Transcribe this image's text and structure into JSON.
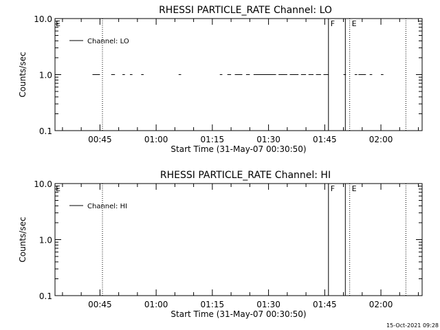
{
  "footer": {
    "timestamp": "15-Oct-2021 09:28"
  },
  "chart_data": [
    {
      "type": "scatter",
      "title": "RHESSI PARTICLE_RATE Channel: LO",
      "xlabel": "Start Time (31-May-07 00:30:50)",
      "ylabel": "Counts/sec",
      "yscale": "log",
      "ylim": [
        0.1,
        10.0
      ],
      "xlim": [
        "00:33:00",
        "02:11:00"
      ],
      "xticks": [
        "00:45",
        "01:00",
        "01:15",
        "01:30",
        "01:45",
        "02:00"
      ],
      "yticks": [
        "0.1",
        "1.0",
        "10.0"
      ],
      "grid": false,
      "legend": {
        "position": "top-left",
        "entries": [
          "Channel: LO"
        ]
      },
      "series": [
        {
          "name": "Channel: LO",
          "segments": [
            {
              "start": "00:43:00",
              "end": "00:45:00",
              "y": 1.0
            },
            {
              "start": "00:48:00",
              "end": "00:49:00",
              "y": 1.0
            },
            {
              "start": "00:51:00",
              "end": "00:51:40",
              "y": 1.0
            },
            {
              "start": "00:53:00",
              "end": "00:53:40",
              "y": 1.0
            },
            {
              "start": "00:56:00",
              "end": "00:56:40",
              "y": 1.0
            },
            {
              "start": "01:06:00",
              "end": "01:06:40",
              "y": 1.0
            },
            {
              "start": "01:17:00",
              "end": "01:17:40",
              "y": 1.0
            },
            {
              "start": "01:19:00",
              "end": "01:20:00",
              "y": 1.0
            },
            {
              "start": "01:21:00",
              "end": "01:23:00",
              "y": 1.0
            },
            {
              "start": "01:24:00",
              "end": "01:25:00",
              "y": 1.0
            },
            {
              "start": "01:26:00",
              "end": "01:32:00",
              "y": 1.0
            },
            {
              "start": "01:32:40",
              "end": "01:35:00",
              "y": 1.0
            },
            {
              "start": "01:35:40",
              "end": "01:38:00",
              "y": 1.0
            },
            {
              "start": "01:38:40",
              "end": "01:40:00",
              "y": 1.0
            },
            {
              "start": "01:40:40",
              "end": "01:42:00",
              "y": 1.0
            },
            {
              "start": "01:42:40",
              "end": "01:44:00",
              "y": 1.0
            },
            {
              "start": "01:44:40",
              "end": "01:46:00",
              "y": 1.0
            },
            {
              "start": "01:50:00",
              "end": "01:50:40",
              "y": 1.0
            },
            {
              "start": "01:53:00",
              "end": "01:53:40",
              "y": 1.0
            },
            {
              "start": "01:54:00",
              "end": "01:56:00",
              "y": 1.0
            },
            {
              "start": "01:57:00",
              "end": "01:57:40",
              "y": 1.0
            },
            {
              "start": "02:00:00",
              "end": "02:00:40",
              "y": 1.0
            }
          ]
        }
      ],
      "markers": [
        {
          "time": "00:33:00",
          "label": "E",
          "style": "none"
        },
        {
          "time": "00:45:40",
          "label": "",
          "style": "dotted"
        },
        {
          "time": "01:46:00",
          "label": "F",
          "style": "solid"
        },
        {
          "time": "01:50:30",
          "label": "",
          "style": "solid"
        },
        {
          "time": "01:51:40",
          "label": "E",
          "style": "dotted"
        },
        {
          "time": "02:06:40",
          "label": "",
          "style": "dotted"
        }
      ]
    },
    {
      "type": "scatter",
      "title": "RHESSI PARTICLE_RATE Channel: HI",
      "xlabel": "Start Time (31-May-07 00:30:50)",
      "ylabel": "Counts/sec",
      "yscale": "log",
      "ylim": [
        0.1,
        10.0
      ],
      "xlim": [
        "00:33:00",
        "02:11:00"
      ],
      "xticks": [
        "00:45",
        "01:00",
        "01:15",
        "01:30",
        "01:45",
        "02:00"
      ],
      "yticks": [
        "0.1",
        "1.0",
        "10.0"
      ],
      "grid": false,
      "legend": {
        "position": "top-left",
        "entries": [
          "Channel: HI"
        ]
      },
      "series": [
        {
          "name": "Channel: HI",
          "segments": []
        }
      ],
      "markers": [
        {
          "time": "00:33:00",
          "label": "E",
          "style": "none"
        },
        {
          "time": "00:45:40",
          "label": "",
          "style": "dotted"
        },
        {
          "time": "01:46:00",
          "label": "F",
          "style": "solid"
        },
        {
          "time": "01:50:30",
          "label": "",
          "style": "solid"
        },
        {
          "time": "01:51:40",
          "label": "E",
          "style": "dotted"
        },
        {
          "time": "02:06:40",
          "label": "",
          "style": "dotted"
        }
      ]
    }
  ]
}
